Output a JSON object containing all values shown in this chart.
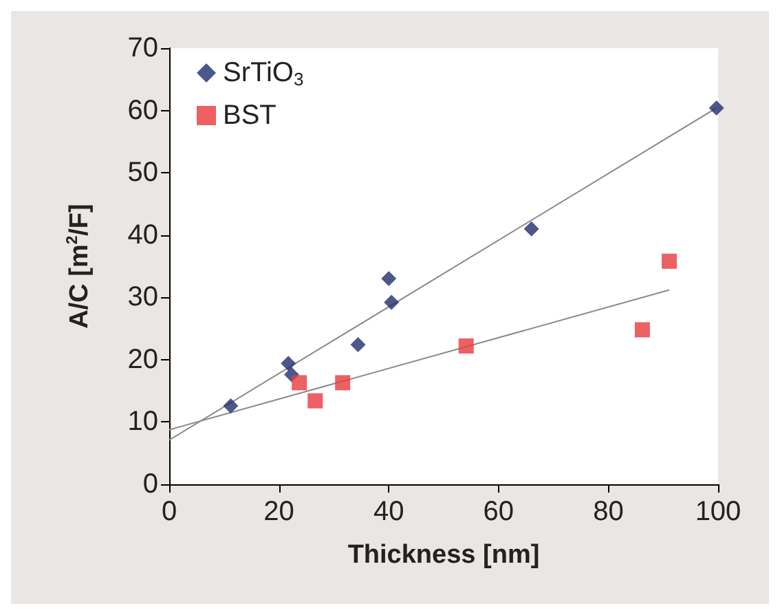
{
  "chart_data": {
    "type": "scatter",
    "xlabel": "Thickness [nm]",
    "ylabel": "A/C [m$^{2}$/F]",
    "xlim": [
      0,
      100
    ],
    "xticks": [
      0,
      20,
      40,
      60,
      80,
      100
    ],
    "ylim": [
      0,
      70
    ],
    "yticks": [
      0,
      10,
      20,
      30,
      40,
      50,
      60,
      70
    ],
    "grid": false,
    "legend": "top left",
    "series": [
      {
        "name": "SrTiO$_{3}$",
        "color": "#1f2d6e",
        "marker": "diamond",
        "x": [
          11.2,
          21.7,
          22.3,
          34.4,
          40.0,
          40.5,
          66.0,
          99.7
        ],
        "values": [
          12.6,
          19.4,
          17.6,
          22.4,
          33.0,
          29.2,
          41.0,
          60.4
        ]
      },
      {
        "name": "BST",
        "color": "#e8383d",
        "marker": "square",
        "x": [
          23.7,
          26.6,
          31.6,
          54.1,
          86.2,
          91.1
        ],
        "values": [
          16.3,
          13.4,
          16.3,
          22.2,
          24.8,
          35.8
        ]
      },
      {
        "type": "line",
        "color": "#8a8a8a",
        "marker": "none",
        "line_style": "solid",
        "x": [
          0,
          99.7
        ],
        "values": [
          7.1,
          60.4
        ]
      },
      {
        "type": "line",
        "color": "#8a8a8a",
        "marker": "none",
        "line_style": "solid",
        "x": [
          0,
          91.1
        ],
        "values": [
          8.75,
          31.2
        ]
      }
    ]
  }
}
